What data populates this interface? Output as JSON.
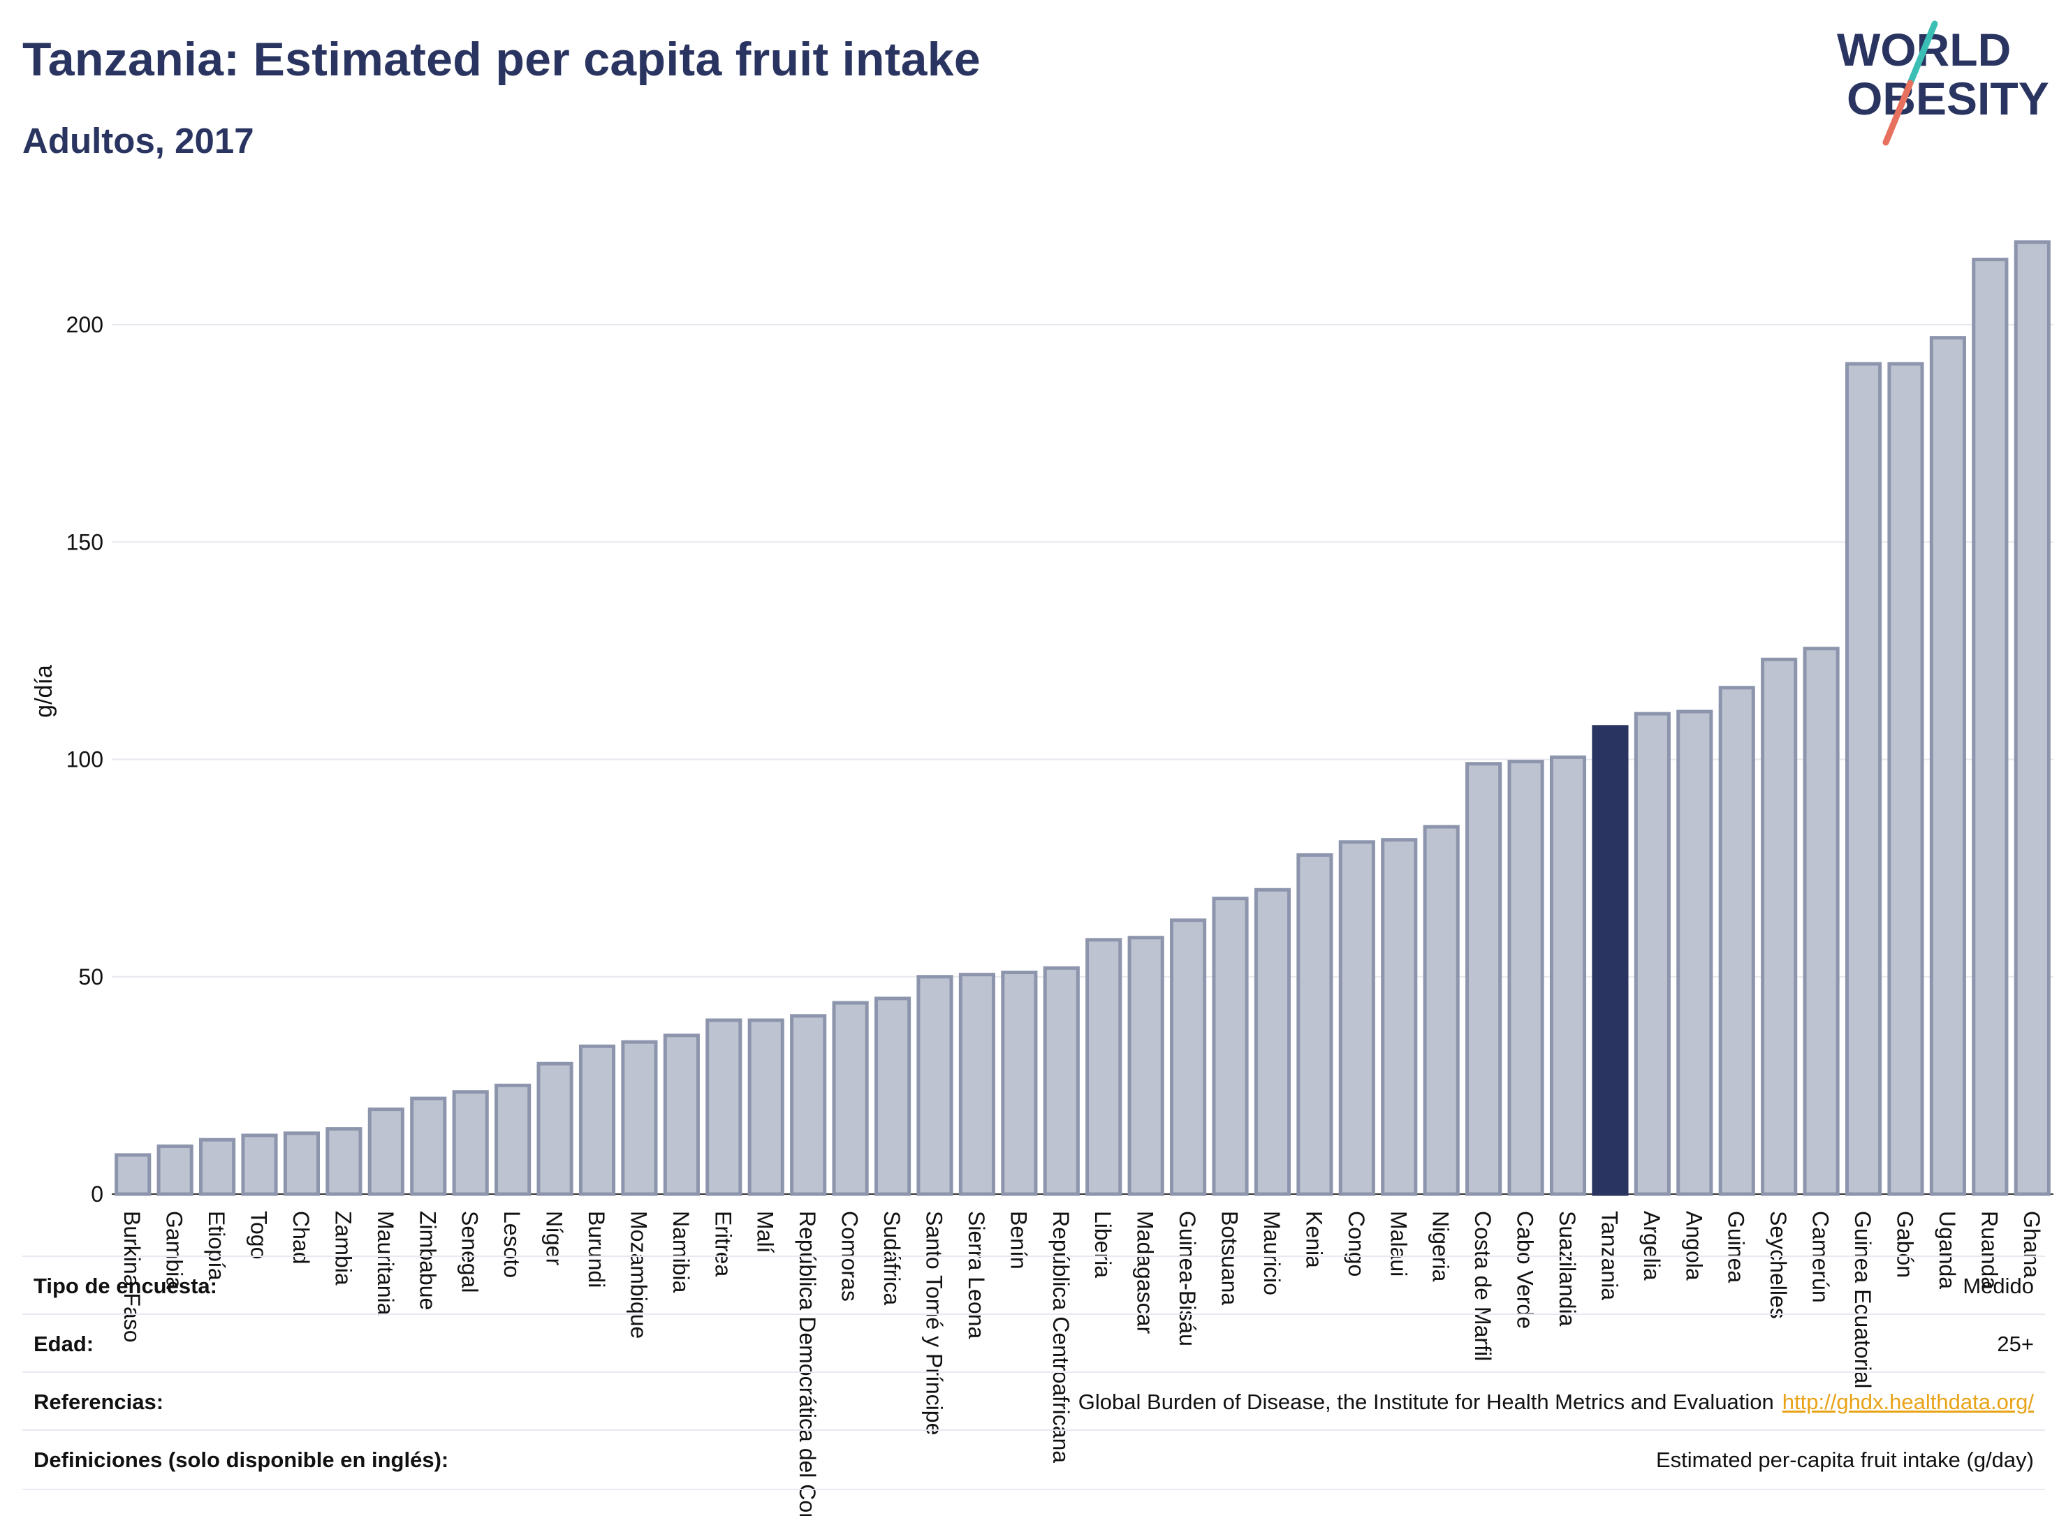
{
  "header": {
    "title": "Tanzania: Estimated per capita fruit intake",
    "subtitle": "Adultos, 2017"
  },
  "logo": {
    "line1": "WORLD",
    "line2": "OBESITY"
  },
  "colors": {
    "bar_default": "#bec3d1",
    "bar_border": "#8d95ad",
    "bar_highlight": "#2a3460",
    "title": "#2a3460",
    "link": "#e8a317",
    "logo_teal": "#3bbfb5",
    "logo_coral": "#e8705f"
  },
  "chart_data": {
    "type": "bar",
    "ylabel": "g/día",
    "ylim": [
      0,
      220
    ],
    "yticks": [
      0,
      50,
      100,
      150,
      200
    ],
    "highlight": "Tanzania",
    "grid": true,
    "categories": [
      "Burkina Faso",
      "Gambia",
      "Etiopía",
      "Togo",
      "Chad",
      "Zambia",
      "Mauritania",
      "Zimbabue",
      "Senegal",
      "Lesoto",
      "Níger",
      "Burundi",
      "Mozambique",
      "Namibia",
      "Eritrea",
      "Malí",
      "República Democrática del Congo",
      "Comoras",
      "Sudáfrica",
      "Santo Tomé y Príncipe",
      "Sierra Leona",
      "Benín",
      "República Centroafricana",
      "Liberia",
      "Madagascar",
      "Guinea-Bisáu",
      "Botsuana",
      "Mauricio",
      "Kenia",
      "Congo",
      "Malaui",
      "Nigeria",
      "Costa de Marfil",
      "Cabo Verde",
      "Suazilandia",
      "Tanzania",
      "Argelia",
      "Angola",
      "Guinea",
      "Seychelles",
      "Camerún",
      "Guinea Ecuatorial",
      "Gabón",
      "Uganda",
      "Ruanda",
      "Ghana"
    ],
    "values": [
      9,
      11,
      12.5,
      13.5,
      14,
      15,
      19.5,
      22,
      23.5,
      25,
      30,
      34,
      35,
      36.5,
      40,
      40,
      41,
      44,
      45,
      50,
      50.5,
      51,
      52,
      58.5,
      59,
      63,
      68,
      70,
      78,
      81,
      81.5,
      84.5,
      99,
      99.5,
      100.5,
      107.5,
      110.5,
      111,
      116.5,
      123,
      125.5,
      191,
      191,
      197,
      215,
      219
    ]
  },
  "meta": {
    "survey_type_label": "Tipo de encuesta:",
    "survey_type_value": "Medido",
    "age_label": "Edad:",
    "age_value": "25+",
    "references_label": "Referencias:",
    "references_value": "Global Burden of Disease, the Institute for Health Metrics and Evaluation",
    "references_link": "http://ghdx.healthdata.org/",
    "definitions_label": "Definiciones (solo disponible en inglés):",
    "definitions_value": "Estimated per-capita fruit intake (g/day)"
  }
}
